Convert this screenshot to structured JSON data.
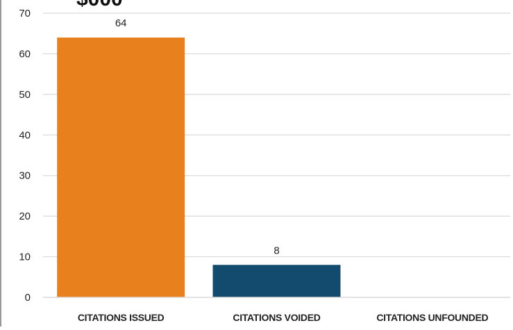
{
  "chart_data": {
    "type": "bar",
    "title": "",
    "title_fragment_visible": "$000",
    "xlabel": "",
    "ylabel": "",
    "categories": [
      "CITATIONS ISSUED",
      "CITATIONS VOIDED",
      "CITATIONS UNFOUNDED"
    ],
    "values": [
      64,
      8,
      0
    ],
    "data_labels": [
      "64",
      "8",
      ""
    ],
    "ylim": [
      0,
      70
    ],
    "yticks": [
      0,
      10,
      20,
      30,
      40,
      50,
      60,
      70
    ],
    "grid": true,
    "legend": "none",
    "colors": [
      "#E8801E",
      "#134B6F",
      "#134B6F"
    ],
    "grid_color": "#D9D9D9"
  }
}
